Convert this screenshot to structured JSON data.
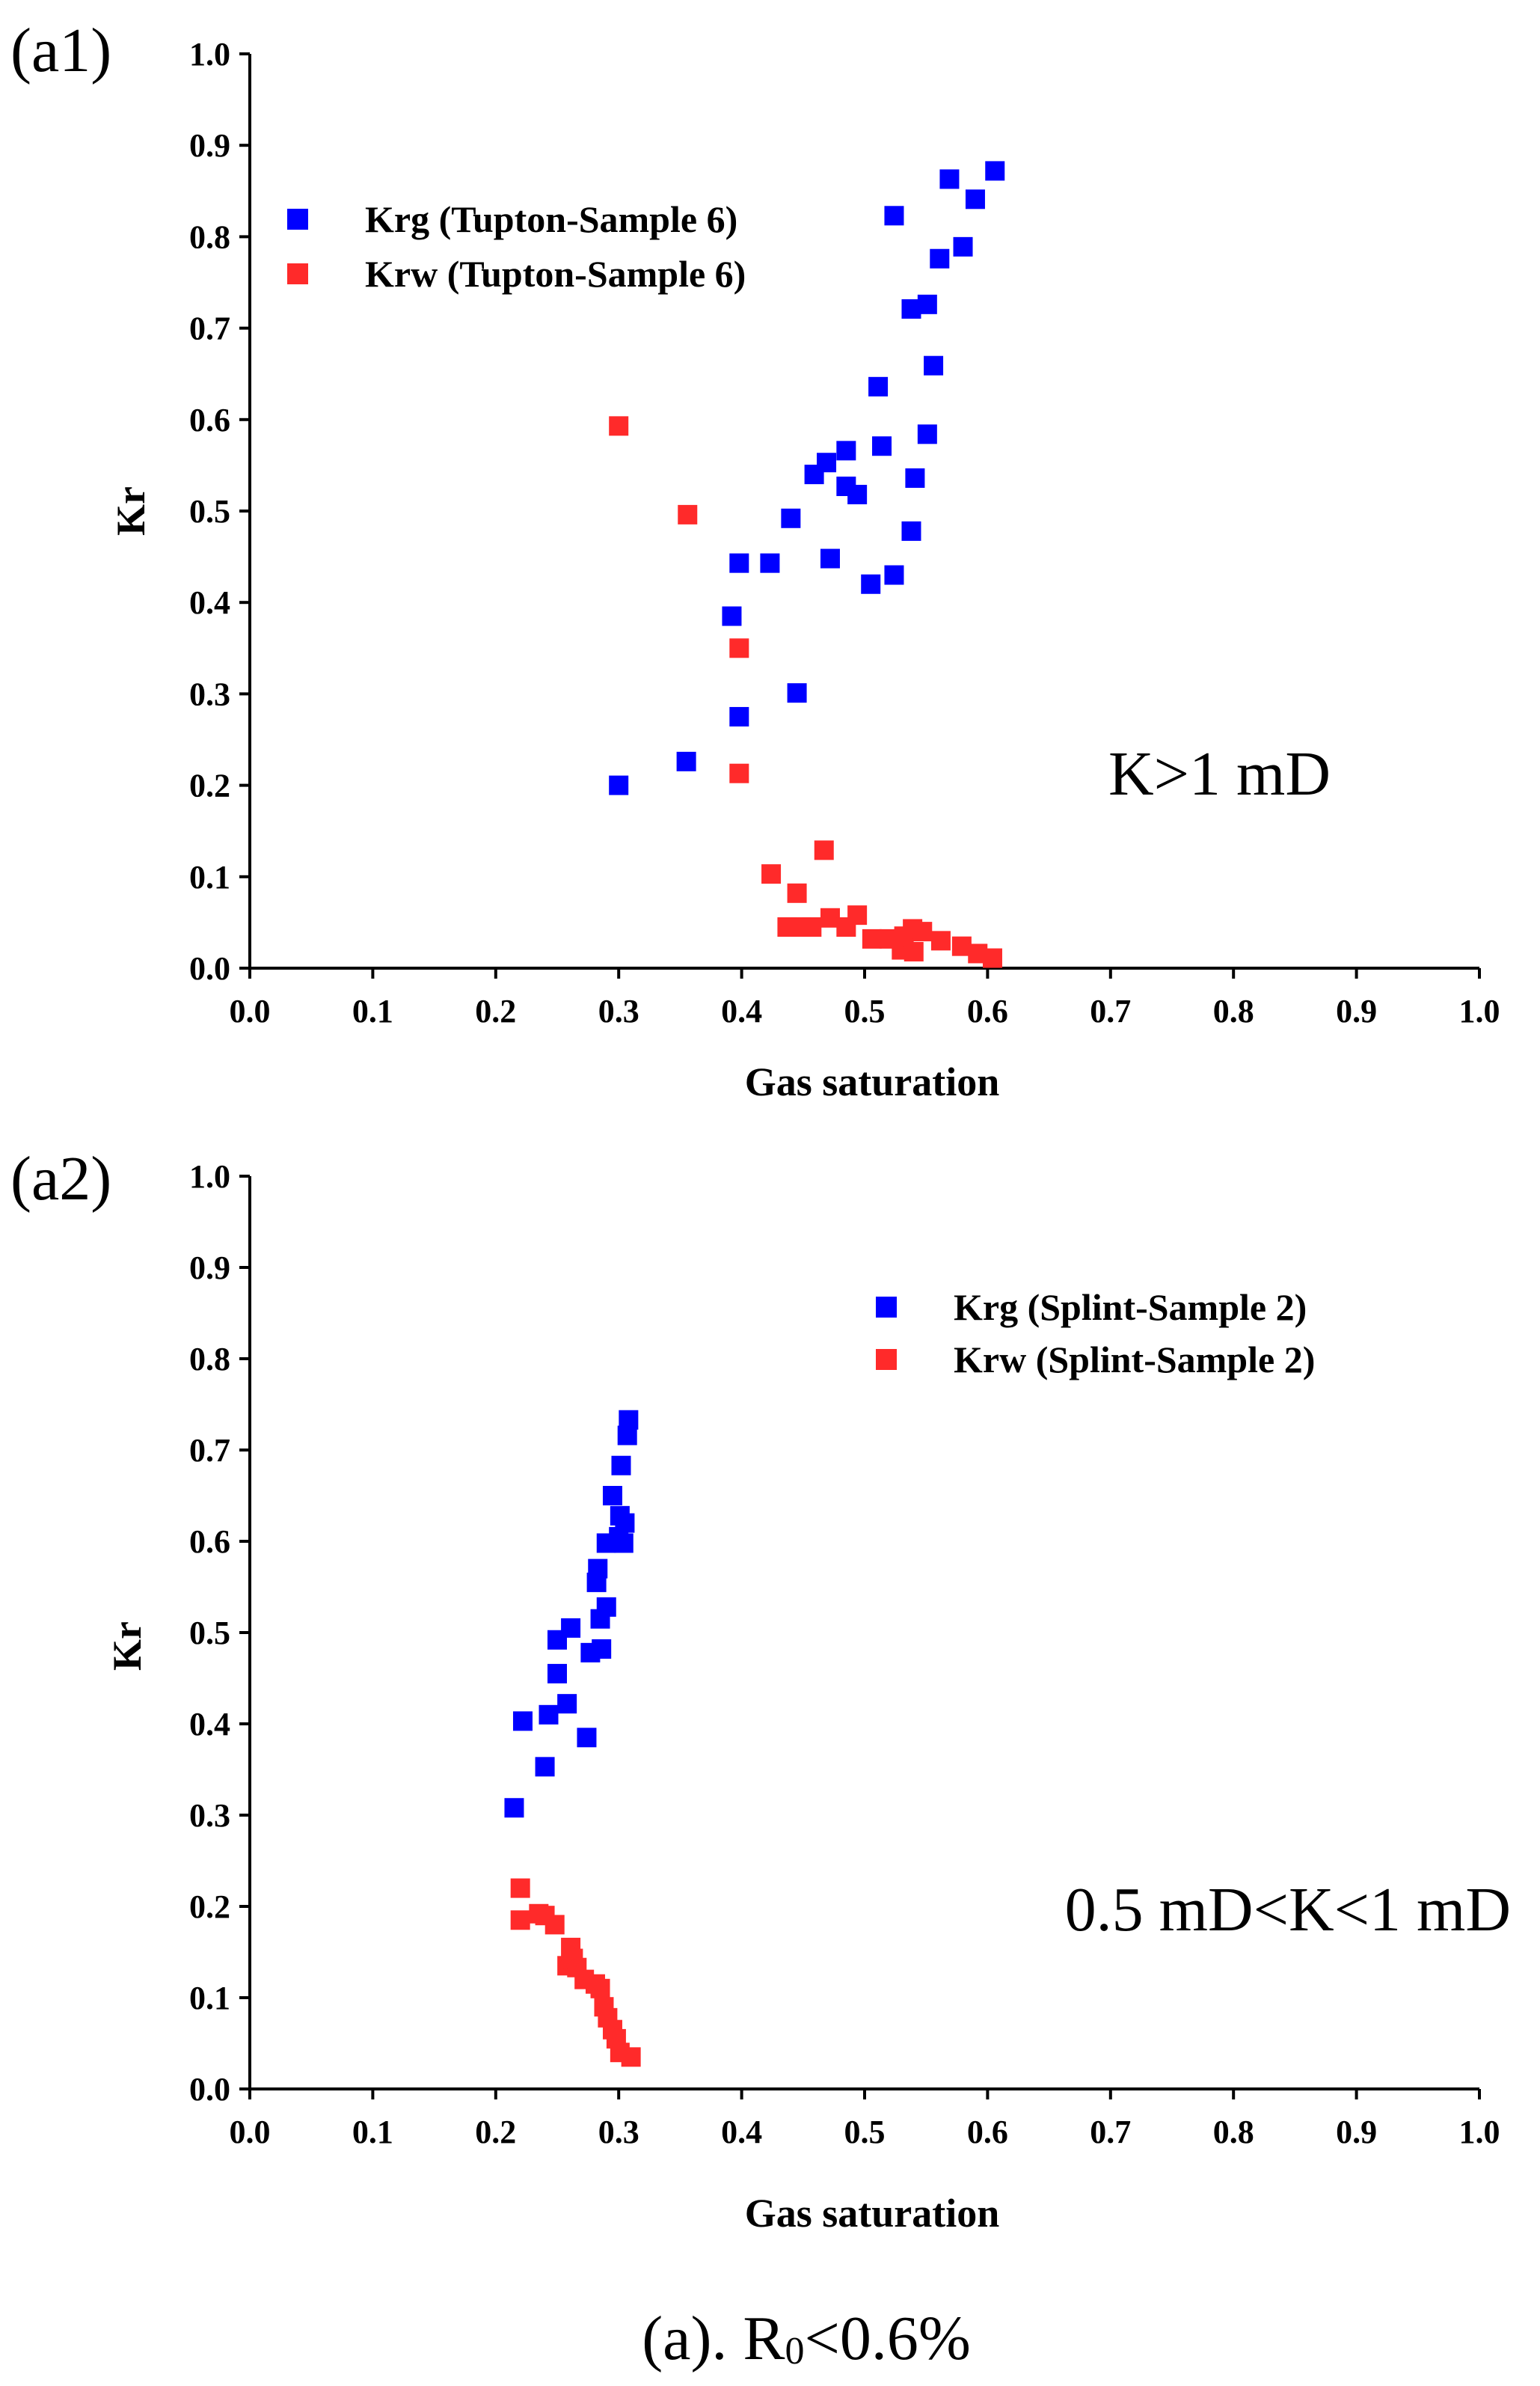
{
  "figure": {
    "caption_prefix": "(a). R",
    "caption_subscript": "0",
    "caption_suffix": "<0.6%"
  },
  "colors": {
    "krg": "#0000ff",
    "krw": "#ff2a2a",
    "axis": "#000000"
  },
  "chart_data": [
    {
      "type": "scatter",
      "panel_label": "(a1)",
      "xlabel": "Gas saturation",
      "ylabel": "Kr",
      "xlim": [
        0,
        1
      ],
      "ylim": [
        0,
        1
      ],
      "x_ticks": [
        "0.0",
        "0.1",
        "0.2",
        "0.3",
        "0.4",
        "0.5",
        "0.6",
        "0.7",
        "0.8",
        "0.9",
        "1.0"
      ],
      "y_ticks": [
        "0.0",
        "0.1",
        "0.2",
        "0.3",
        "0.4",
        "0.5",
        "0.6",
        "0.7",
        "0.8",
        "0.9",
        "1.0"
      ],
      "legend_position": "top-left",
      "annotation": "K>1 mD",
      "annotation_position": "right-middle",
      "series": [
        {
          "name": "Krg (Tupton-Sample 6)",
          "color": "#0000ff",
          "marker": "square",
          "points": [
            [
              0.3,
              0.2
            ],
            [
              0.355,
              0.226
            ],
            [
              0.398,
              0.275
            ],
            [
              0.392,
              0.385
            ],
            [
              0.398,
              0.443
            ],
            [
              0.445,
              0.301
            ],
            [
              0.423,
              0.443
            ],
            [
              0.44,
              0.492
            ],
            [
              0.472,
              0.448
            ],
            [
              0.459,
              0.54
            ],
            [
              0.469,
              0.553
            ],
            [
              0.485,
              0.566
            ],
            [
              0.485,
              0.527
            ],
            [
              0.494,
              0.518
            ],
            [
              0.505,
              0.42
            ],
            [
              0.514,
              0.571
            ],
            [
              0.511,
              0.636
            ],
            [
              0.524,
              0.43
            ],
            [
              0.524,
              0.823
            ],
            [
              0.538,
              0.478
            ],
            [
              0.541,
              0.536
            ],
            [
              0.538,
              0.721
            ],
            [
              0.551,
              0.584
            ],
            [
              0.551,
              0.726
            ],
            [
              0.556,
              0.659
            ],
            [
              0.561,
              0.776
            ],
            [
              0.569,
              0.863
            ],
            [
              0.58,
              0.789
            ],
            [
              0.59,
              0.841
            ],
            [
              0.606,
              0.872
            ]
          ]
        },
        {
          "name": "Krw (Tupton-Sample 6)",
          "color": "#ff2a2a",
          "marker": "square",
          "points": [
            [
              0.3,
              0.593
            ],
            [
              0.356,
              0.496
            ],
            [
              0.398,
              0.35
            ],
            [
              0.398,
              0.213
            ],
            [
              0.424,
              0.103
            ],
            [
              0.445,
              0.082
            ],
            [
              0.437,
              0.045
            ],
            [
              0.448,
              0.045
            ],
            [
              0.457,
              0.045
            ],
            [
              0.467,
              0.129
            ],
            [
              0.472,
              0.055
            ],
            [
              0.485,
              0.045
            ],
            [
              0.494,
              0.058
            ],
            [
              0.506,
              0.032
            ],
            [
              0.52,
              0.032
            ],
            [
              0.53,
              0.02
            ],
            [
              0.532,
              0.035
            ],
            [
              0.539,
              0.043
            ],
            [
              0.54,
              0.018
            ],
            [
              0.547,
              0.04
            ],
            [
              0.562,
              0.03
            ],
            [
              0.579,
              0.024
            ],
            [
              0.592,
              0.016
            ],
            [
              0.604,
              0.011
            ]
          ]
        }
      ]
    },
    {
      "type": "scatter",
      "panel_label": "(a2)",
      "xlabel": "Gas saturation",
      "ylabel": "Kr",
      "xlim": [
        0,
        1
      ],
      "ylim": [
        0,
        1
      ],
      "x_ticks": [
        "0.0",
        "0.1",
        "0.2",
        "0.3",
        "0.4",
        "0.5",
        "0.6",
        "0.7",
        "0.8",
        "0.9",
        "1.0"
      ],
      "y_ticks": [
        "0.0",
        "0.1",
        "0.2",
        "0.3",
        "0.4",
        "0.5",
        "0.6",
        "0.7",
        "0.8",
        "0.9",
        "1.0"
      ],
      "legend_position": "top-right",
      "annotation": "0.5 mD<K<1 mD",
      "annotation_position": "right-lower",
      "series": [
        {
          "name": "Krg (Splint-Sample 2)",
          "color": "#0000ff",
          "marker": "square",
          "points": [
            [
              0.215,
              0.308
            ],
            [
              0.222,
              0.403
            ],
            [
              0.24,
              0.353
            ],
            [
              0.243,
              0.41
            ],
            [
              0.25,
              0.455
            ],
            [
              0.25,
              0.492
            ],
            [
              0.258,
              0.422
            ],
            [
              0.261,
              0.505
            ],
            [
              0.274,
              0.385
            ],
            [
              0.277,
              0.478
            ],
            [
              0.282,
              0.555
            ],
            [
              0.283,
              0.57
            ],
            [
              0.286,
              0.482
            ],
            [
              0.285,
              0.515
            ],
            [
              0.29,
              0.528
            ],
            [
              0.29,
              0.598
            ],
            [
              0.295,
              0.65
            ],
            [
              0.3,
              0.605
            ],
            [
              0.301,
              0.628
            ],
            [
              0.302,
              0.683
            ],
            [
              0.304,
              0.598
            ],
            [
              0.305,
              0.62
            ],
            [
              0.307,
              0.716
            ],
            [
              0.308,
              0.733
            ]
          ]
        },
        {
          "name": "Krw (Splint-Sample 2)",
          "color": "#ff2a2a",
          "marker": "square",
          "points": [
            [
              0.22,
              0.22
            ],
            [
              0.22,
              0.185
            ],
            [
              0.235,
              0.192
            ],
            [
              0.24,
              0.19
            ],
            [
              0.248,
              0.18
            ],
            [
              0.258,
              0.135
            ],
            [
              0.261,
              0.155
            ],
            [
              0.263,
              0.143
            ],
            [
              0.266,
              0.133
            ],
            [
              0.272,
              0.12
            ],
            [
              0.281,
              0.115
            ],
            [
              0.285,
              0.11
            ],
            [
              0.288,
              0.09
            ],
            [
              0.291,
              0.078
            ],
            [
              0.295,
              0.065
            ],
            [
              0.298,
              0.055
            ],
            [
              0.301,
              0.04
            ],
            [
              0.31,
              0.035
            ]
          ]
        }
      ]
    }
  ]
}
